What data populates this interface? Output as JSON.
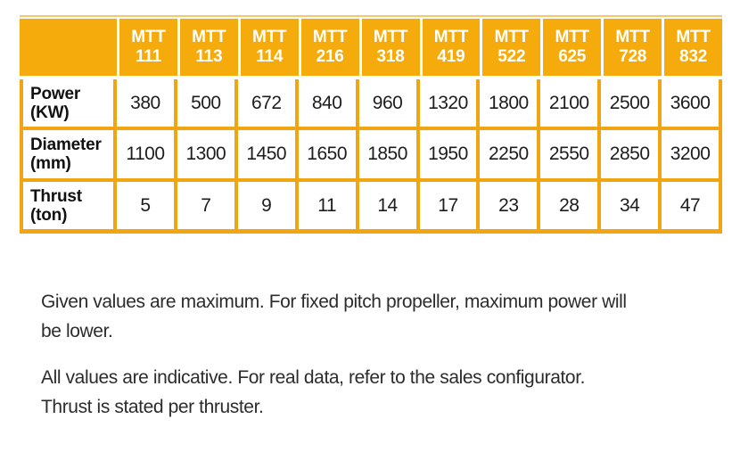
{
  "colors": {
    "accent": "#F6AB0D",
    "accent_light": "#F6C866",
    "grid_line": "#F2A512",
    "header_text": "#FFFFFF",
    "cell_text": "#1D1D1B",
    "note_text": "#2C2C2C"
  },
  "table": {
    "corner_label": "",
    "header": [
      {
        "line1": "MTT",
        "line2": "111"
      },
      {
        "line1": "MTT",
        "line2": "113"
      },
      {
        "line1": "MTT",
        "line2": "114"
      },
      {
        "line1": "MTT",
        "line2": "216"
      },
      {
        "line1": "MTT",
        "line2": "318"
      },
      {
        "line1": "MTT",
        "line2": "419"
      },
      {
        "line1": "MTT",
        "line2": "522"
      },
      {
        "line1": "MTT",
        "line2": "625"
      },
      {
        "line1": "MTT",
        "line2": "728"
      },
      {
        "line1": "MTT",
        "line2": "832"
      }
    ],
    "rows": [
      {
        "label": "Power",
        "unit": "(KW)",
        "values": [
          "380",
          "500",
          "672",
          "840",
          "960",
          "1320",
          "1800",
          "2100",
          "2500",
          "3600"
        ]
      },
      {
        "label": "Diameter",
        "unit": "(mm)",
        "values": [
          "1100",
          "1300",
          "1450",
          "1650",
          "1850",
          "1950",
          "2250",
          "2550",
          "2850",
          "3200"
        ]
      },
      {
        "label": "Thrust",
        "unit": "(ton)",
        "values": [
          "5",
          "7",
          "9",
          "11",
          "14",
          "17",
          "23",
          "28",
          "34",
          "47"
        ]
      }
    ]
  },
  "notes": [
    {
      "lines": [
        "Given values are maximum. For fixed pitch propeller, maximum power will",
        "be lower."
      ]
    },
    {
      "lines": [
        "All values are indicative. For real data, refer to the sales configurator.",
        "Thrust is stated per thruster."
      ]
    }
  ]
}
